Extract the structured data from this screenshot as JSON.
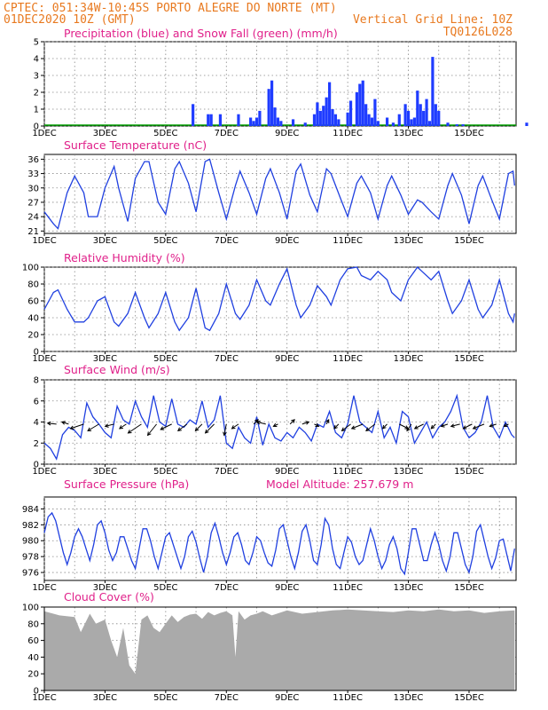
{
  "header": {
    "line1_left": "CPTEC:   051:34W-10:45S  PORTO ALEGRE DO NORTE (MT)",
    "line2_left": "01DEC2020 10Z (GMT)",
    "line2_right": "Vertical Grid Line: 10Z",
    "line3_right": "TQ0126L028"
  },
  "colors": {
    "header": "#e8791f",
    "title": "#e0208a",
    "precip": "#1f3cff",
    "snow": "#00a000",
    "line": "#2040e0",
    "cloud": "#aaaaaa"
  },
  "x_ticks": [
    "1DEC",
    "3DEC",
    "5DEC",
    "7DEC",
    "9DEC",
    "11DEC",
    "13DEC",
    "15DEC"
  ],
  "chart_data": [
    {
      "type": "bar",
      "title": "Precipitation (blue) and Snow Fall (green) (mm/h)",
      "ylim": [
        0,
        5
      ],
      "yticks": [
        "0",
        "1",
        "2",
        "3",
        "4",
        "5"
      ],
      "x_day_range": [
        0,
        15.5
      ],
      "series": [
        {
          "name": "Precipitation",
          "x": [
            4.9,
            5.4,
            5.5,
            5.8,
            6.4,
            6.8,
            6.9,
            7.0,
            7.1,
            7.4,
            7.5,
            7.6,
            7.7,
            7.8,
            8.2,
            8.6,
            8.9,
            9.0,
            9.1,
            9.2,
            9.3,
            9.4,
            9.5,
            9.6,
            9.7,
            10.0,
            10.1,
            10.3,
            10.4,
            10.5,
            10.6,
            10.7,
            10.8,
            10.9,
            11.0,
            11.3,
            11.5,
            11.7,
            11.9,
            12.0,
            12.1,
            12.2,
            12.3,
            12.4,
            12.5,
            12.6,
            12.7,
            12.8,
            12.9,
            13.0,
            13.3,
            13.6,
            13.8,
            15.9
          ],
          "values": [
            1.3,
            0.7,
            0.7,
            0.7,
            0.7,
            0.5,
            0.3,
            0.5,
            0.9,
            2.2,
            2.7,
            1.1,
            0.5,
            0.3,
            0.4,
            0.2,
            0.7,
            1.4,
            0.9,
            1.2,
            1.7,
            2.6,
            1.0,
            0.7,
            0.4,
            0.8,
            1.5,
            2.0,
            2.5,
            2.7,
            1.3,
            0.7,
            0.5,
            1.6,
            0.3,
            0.5,
            0.2,
            0.7,
            1.3,
            0.9,
            0.4,
            0.5,
            2.1,
            1.3,
            0.9,
            1.6,
            0.3,
            4.1,
            1.3,
            0.9,
            0.2,
            0.1,
            0.1,
            0.2
          ]
        },
        {
          "name": "Snow Fall",
          "x": [],
          "values": []
        }
      ]
    },
    {
      "type": "line",
      "title": "Surface Temperature (nC)",
      "ylim": [
        20.5,
        37
      ],
      "yticks": [
        "21",
        "24",
        "27",
        "30",
        "33",
        "36"
      ],
      "x": [
        0.0,
        0.3,
        0.45,
        0.75,
        1.0,
        1.3,
        1.45,
        1.75,
        2.0,
        2.3,
        2.45,
        2.75,
        3.0,
        3.3,
        3.45,
        3.75,
        4.0,
        4.3,
        4.45,
        4.75,
        5.0,
        5.3,
        5.45,
        5.75,
        6.0,
        6.3,
        6.45,
        6.75,
        7.0,
        7.3,
        7.45,
        7.75,
        8.0,
        8.3,
        8.45,
        8.75,
        9.0,
        9.3,
        9.45,
        9.75,
        10.0,
        10.3,
        10.45,
        10.75,
        11.0,
        11.3,
        11.45,
        11.75,
        12.0,
        12.3,
        12.45,
        12.75,
        13.0,
        13.3,
        13.45,
        13.75,
        14.0,
        14.3,
        14.45,
        14.75,
        15.0,
        15.3,
        15.45,
        15.5
      ],
      "values": [
        25.0,
        22.5,
        21.5,
        29.0,
        32.5,
        29.0,
        24.0,
        24.0,
        30.0,
        34.5,
        30.0,
        23.0,
        32.0,
        35.5,
        35.5,
        27.0,
        24.5,
        34.0,
        35.5,
        31.0,
        25.0,
        35.5,
        36.0,
        29.0,
        23.5,
        30.5,
        33.5,
        29.0,
        24.5,
        32.0,
        34.0,
        29.0,
        23.5,
        33.5,
        35.0,
        28.5,
        25.0,
        34.0,
        33.0,
        28.0,
        24.0,
        31.0,
        32.5,
        29.0,
        23.5,
        30.5,
        32.5,
        28.5,
        24.5,
        27.5,
        27.0,
        25.0,
        23.5,
        30.5,
        33.0,
        28.5,
        22.5,
        30.5,
        32.5,
        27.5,
        23.5,
        33.0,
        33.5,
        30.5
      ]
    },
    {
      "type": "line",
      "title": "Relative Humidity (%)",
      "ylim": [
        0,
        100
      ],
      "yticks": [
        "0",
        "20",
        "40",
        "60",
        "80",
        "100"
      ],
      "x": [
        0.0,
        0.3,
        0.45,
        0.75,
        1.0,
        1.3,
        1.45,
        1.75,
        2.0,
        2.3,
        2.45,
        2.75,
        3.0,
        3.3,
        3.45,
        3.75,
        4.0,
        4.3,
        4.45,
        4.75,
        5.0,
        5.3,
        5.45,
        5.75,
        6.0,
        6.3,
        6.45,
        6.75,
        7.0,
        7.3,
        7.45,
        7.75,
        8.0,
        8.3,
        8.45,
        8.75,
        9.0,
        9.3,
        9.45,
        9.75,
        10.0,
        10.3,
        10.45,
        10.75,
        11.0,
        11.3,
        11.45,
        11.75,
        12.0,
        12.3,
        12.45,
        12.75,
        13.0,
        13.3,
        13.45,
        13.75,
        14.0,
        14.3,
        14.45,
        14.75,
        15.0,
        15.3,
        15.45,
        15.5
      ],
      "values": [
        50,
        70,
        73,
        50,
        35,
        35,
        40,
        60,
        65,
        35,
        30,
        45,
        70,
        40,
        28,
        45,
        70,
        35,
        25,
        40,
        75,
        28,
        25,
        45,
        80,
        45,
        38,
        55,
        85,
        60,
        55,
        80,
        98,
        55,
        40,
        55,
        78,
        65,
        55,
        85,
        98,
        100,
        90,
        85,
        95,
        85,
        70,
        60,
        85,
        100,
        95,
        85,
        95,
        60,
        45,
        60,
        85,
        50,
        40,
        55,
        85,
        45,
        35,
        45
      ]
    },
    {
      "type": "line",
      "title": "Surface Wind (m/s)",
      "ylim": [
        0,
        8
      ],
      "yticks": [
        "0",
        "2",
        "4",
        "6",
        "8"
      ],
      "x": [
        0.0,
        0.2,
        0.4,
        0.6,
        0.8,
        1.0,
        1.2,
        1.4,
        1.6,
        1.8,
        2.0,
        2.2,
        2.4,
        2.6,
        2.8,
        3.0,
        3.2,
        3.4,
        3.6,
        3.8,
        4.0,
        4.2,
        4.4,
        4.6,
        4.8,
        5.0,
        5.2,
        5.4,
        5.6,
        5.8,
        6.0,
        6.2,
        6.4,
        6.6,
        6.8,
        7.0,
        7.2,
        7.4,
        7.6,
        7.8,
        8.0,
        8.2,
        8.4,
        8.6,
        8.8,
        9.0,
        9.2,
        9.4,
        9.6,
        9.8,
        10.0,
        10.2,
        10.4,
        10.6,
        10.8,
        11.0,
        11.2,
        11.4,
        11.6,
        11.8,
        12.0,
        12.2,
        12.4,
        12.6,
        12.8,
        13.0,
        13.2,
        13.4,
        13.6,
        13.8,
        14.0,
        14.2,
        14.4,
        14.6,
        14.8,
        15.0,
        15.2,
        15.4,
        15.5
      ],
      "values": [
        2.0,
        1.5,
        0.5,
        2.8,
        3.5,
        3.2,
        2.5,
        5.8,
        4.5,
        3.8,
        3.0,
        2.5,
        5.5,
        4.2,
        3.8,
        6.0,
        4.5,
        3.5,
        6.5,
        4.0,
        3.6,
        6.2,
        3.8,
        3.5,
        4.2,
        3.8,
        6.0,
        3.5,
        4.2,
        6.5,
        2.0,
        1.5,
        3.5,
        2.5,
        2.0,
        4.5,
        1.8,
        3.8,
        2.5,
        2.2,
        3.0,
        2.5,
        3.5,
        3.0,
        2.2,
        3.8,
        3.5,
        5.0,
        3.0,
        2.5,
        3.8,
        6.5,
        4.0,
        3.5,
        3.0,
        5.0,
        2.5,
        3.5,
        2.0,
        5.0,
        4.5,
        2.0,
        3.0,
        4.0,
        2.5,
        3.5,
        4.0,
        5.0,
        6.5,
        3.5,
        2.5,
        3.0,
        4.0,
        6.5,
        3.5,
        2.5,
        4.0,
        2.8,
        2.5
      ],
      "arrows": {
        "x": [
          0.4,
          0.8,
          1.3,
          1.8,
          2.3,
          2.7,
          3.2,
          3.7,
          4.2,
          4.7,
          5.2,
          5.6,
          6.0,
          6.4,
          6.9,
          7.3,
          7.7,
          8.1,
          8.5,
          8.9,
          9.3,
          9.7,
          10.1,
          10.5,
          10.9,
          11.3,
          11.7,
          12.1,
          12.5,
          12.9,
          13.3,
          13.7,
          14.1,
          14.5,
          14.9,
          15.3
        ],
        "u": [
          -2,
          -1.5,
          -3,
          -2.5,
          -2,
          -1.5,
          -3,
          -2,
          -2.5,
          -2,
          -1.5,
          -2,
          -0.5,
          -1.5,
          1,
          -2,
          -1,
          1,
          1.5,
          1,
          0.5,
          -1,
          -2,
          -2.5,
          -2,
          -1,
          2,
          -1,
          -2,
          -1,
          -1.5,
          -2,
          -2,
          -2.5,
          -1.5,
          -1
        ],
        "v": [
          0.2,
          0.5,
          -1,
          -1.5,
          -0.5,
          -1,
          -2,
          -2.5,
          -1.2,
          -1.5,
          -1.5,
          -2,
          -2.5,
          -1,
          1,
          0.5,
          -0.5,
          1,
          0.5,
          -0.5,
          1,
          -1,
          -1.5,
          -1,
          -1.5,
          -1,
          -1,
          -1.5,
          -1,
          -1,
          -0.5,
          -0.5,
          -1,
          -1,
          -0.5,
          -0.5
        ]
      }
    },
    {
      "type": "line",
      "title": "Surface Pressure (hPa)",
      "annotation": "Model Altitude: 257.679 m",
      "ylim": [
        975,
        985.5
      ],
      "yticks": [
        "976",
        "978",
        "980",
        "982",
        "984"
      ],
      "x": [
        0.0,
        0.125,
        0.25,
        0.375,
        0.5,
        0.625,
        0.75,
        0.875,
        1.0,
        1.125,
        1.25,
        1.375,
        1.5,
        1.625,
        1.75,
        1.875,
        2.0,
        2.125,
        2.25,
        2.375,
        2.5,
        2.625,
        2.75,
        2.875,
        3.0,
        3.125,
        3.25,
        3.375,
        3.5,
        3.625,
        3.75,
        3.875,
        4.0,
        4.125,
        4.25,
        4.375,
        4.5,
        4.625,
        4.75,
        4.875,
        5.0,
        5.125,
        5.25,
        5.375,
        5.5,
        5.625,
        5.75,
        5.875,
        6.0,
        6.125,
        6.25,
        6.375,
        6.5,
        6.625,
        6.75,
        6.875,
        7.0,
        7.125,
        7.25,
        7.375,
        7.5,
        7.625,
        7.75,
        7.875,
        8.0,
        8.125,
        8.25,
        8.375,
        8.5,
        8.625,
        8.75,
        8.875,
        9.0,
        9.125,
        9.25,
        9.375,
        9.5,
        9.625,
        9.75,
        9.875,
        10.0,
        10.125,
        10.25,
        10.375,
        10.5,
        10.625,
        10.75,
        10.875,
        11.0,
        11.125,
        11.25,
        11.375,
        11.5,
        11.625,
        11.75,
        11.875,
        12.0,
        12.125,
        12.25,
        12.375,
        12.5,
        12.625,
        12.75,
        12.875,
        13.0,
        13.125,
        13.25,
        13.375,
        13.5,
        13.625,
        13.75,
        13.875,
        14.0,
        14.125,
        14.25,
        14.375,
        14.5,
        14.625,
        14.75,
        14.875,
        15.0,
        15.125,
        15.25,
        15.375,
        15.5
      ],
      "values": [
        981.0,
        983.0,
        983.5,
        982.5,
        980.5,
        978.5,
        977.0,
        978.5,
        980.5,
        981.5,
        980.5,
        979.0,
        977.5,
        979.5,
        982.0,
        982.5,
        981.0,
        978.8,
        977.5,
        978.5,
        980.5,
        980.5,
        979.0,
        977.5,
        976.5,
        979.0,
        981.5,
        981.5,
        980.0,
        978.0,
        976.5,
        978.5,
        980.5,
        981.0,
        979.5,
        978.0,
        976.5,
        978.0,
        980.5,
        981.2,
        979.8,
        977.8,
        976.0,
        978.0,
        981.0,
        982.2,
        980.5,
        978.5,
        977.0,
        978.5,
        980.5,
        981.0,
        979.5,
        977.5,
        977.0,
        978.5,
        980.5,
        980.0,
        978.5,
        977.2,
        976.8,
        978.8,
        981.5,
        982.0,
        980.0,
        978.0,
        976.5,
        978.5,
        981.2,
        982.0,
        980.0,
        977.5,
        977.0,
        979.5,
        982.8,
        982.0,
        979.0,
        977.0,
        976.5,
        978.5,
        980.5,
        979.8,
        978.0,
        977.0,
        977.5,
        979.5,
        981.5,
        980.0,
        978.0,
        976.5,
        977.5,
        979.5,
        980.5,
        979.0,
        976.5,
        975.8,
        978.5,
        981.5,
        981.5,
        979.5,
        977.5,
        977.5,
        979.5,
        981.0,
        979.5,
        977.5,
        976.2,
        978.0,
        981.0,
        981.0,
        979.0,
        977.0,
        976.0,
        978.0,
        981.2,
        982.0,
        980.0,
        978.0,
        976.5,
        977.8,
        980.0,
        980.2,
        978.2,
        976.2,
        979.0
      ]
    },
    {
      "type": "area",
      "title": "Cloud Cover (%)",
      "ylim": [
        0,
        100
      ],
      "yticks": [
        "0",
        "20",
        "40",
        "60",
        "80",
        "100"
      ],
      "x": [
        0.0,
        0.5,
        1.0,
        1.2,
        1.5,
        1.7,
        2.0,
        2.2,
        2.4,
        2.6,
        2.8,
        3.0,
        3.2,
        3.4,
        3.6,
        3.8,
        4.0,
        4.2,
        4.4,
        4.6,
        4.8,
        5.0,
        5.2,
        5.4,
        5.6,
        5.8,
        6.0,
        6.2,
        6.3,
        6.4,
        6.6,
        6.8,
        7.0,
        7.2,
        7.5,
        8.0,
        8.5,
        9.0,
        9.5,
        10.0,
        10.5,
        11.0,
        11.5,
        12.0,
        12.5,
        13.0,
        13.5,
        14.0,
        14.5,
        15.0,
        15.5
      ],
      "values": [
        95,
        90,
        88,
        70,
        92,
        80,
        85,
        60,
        40,
        75,
        30,
        20,
        85,
        90,
        75,
        70,
        80,
        90,
        82,
        88,
        91,
        92,
        86,
        94,
        90,
        93,
        95,
        90,
        40,
        95,
        85,
        90,
        92,
        95,
        90,
        96,
        92,
        94,
        96,
        97,
        96,
        95,
        94,
        96,
        95,
        97,
        95,
        96,
        93,
        95,
        96
      ]
    }
  ]
}
